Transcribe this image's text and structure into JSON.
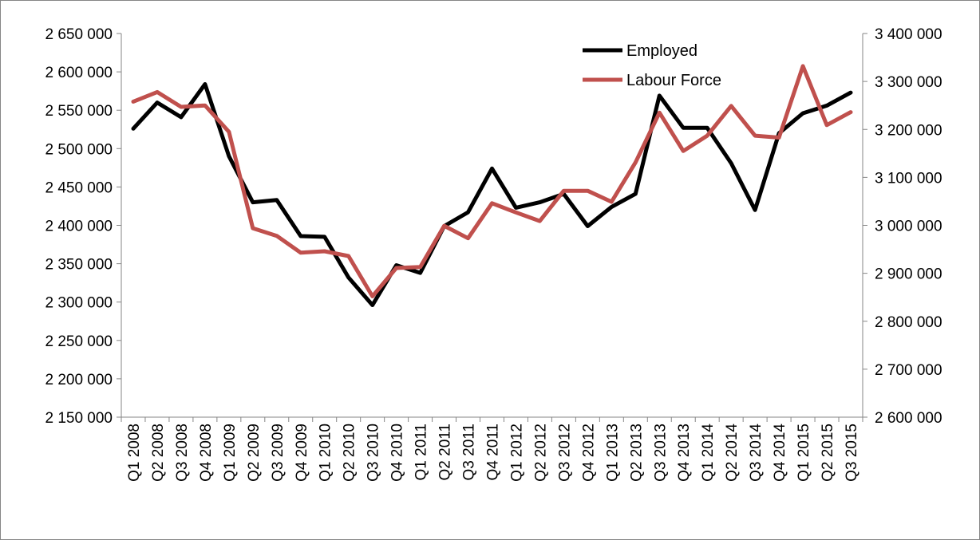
{
  "chart_data": {
    "type": "line",
    "categories": [
      "Q1 2008",
      "Q2 2008",
      "Q3 2008",
      "Q4 2008",
      "Q1 2009",
      "Q2 2009",
      "Q3 2009",
      "Q4 2009",
      "Q1 2010",
      "Q2 2010",
      "Q3 2010",
      "Q4 2010",
      "Q1 2011",
      "Q2 2011",
      "Q3 2011",
      "Q4 2011",
      "Q1 2012",
      "Q2 2012",
      "Q3 2012",
      "Q4 2012",
      "Q1 2013",
      "Q2 2013",
      "Q3 2013",
      "Q4 2013",
      "Q1 2014",
      "Q2 2014",
      "Q3 2014",
      "Q4 2014",
      "Q1 2015",
      "Q2 2015",
      "Q3 2015"
    ],
    "series": [
      {
        "name": "Employed",
        "axis": "left",
        "color": "#000000",
        "values": [
          2526000,
          2560000,
          2541000,
          2584000,
          2490000,
          2430000,
          2433000,
          2386000,
          2385000,
          2332000,
          2296000,
          2348000,
          2338000,
          2399000,
          2417000,
          2474000,
          2423000,
          2430000,
          2441000,
          2399000,
          2424000,
          2441000,
          2569000,
          2527000,
          2527000,
          2481000,
          2420000,
          2520000,
          2546000,
          2556000,
          2573000
        ]
      },
      {
        "name": "Labour Force",
        "axis": "right",
        "color": "#c0504d",
        "values": [
          3258000,
          3278000,
          3247000,
          3250000,
          3195000,
          2994000,
          2978000,
          2943000,
          2946000,
          2936000,
          2852000,
          2911000,
          2913000,
          2999000,
          2973000,
          3046000,
          3027000,
          3009000,
          3072000,
          3072000,
          3049000,
          3131000,
          3235000,
          3155000,
          3187000,
          3249000,
          3187000,
          3183000,
          3332000,
          3209000,
          3236000
        ]
      }
    ],
    "ylim": [
      2150000,
      2650000
    ],
    "y2lim": [
      2600000,
      3400000
    ],
    "yticks": [
      "2 150 000",
      "2 200 000",
      "2 250 000",
      "2 300 000",
      "2 350 000",
      "2 400 000",
      "2 450 000",
      "2 500 000",
      "2 550 000",
      "2 600 000",
      "2 650 000"
    ],
    "y2ticks": [
      "2 600 000",
      "2 700 000",
      "2 800 000",
      "2 900 000",
      "3 000 000",
      "3 100 000",
      "3 200 000",
      "3 300 000",
      "3 400 000"
    ],
    "legend": [
      "Employed",
      "Labour Force"
    ],
    "legend_position": "top-right",
    "grid": false,
    "title": "",
    "xlabel": "",
    "ylabel": ""
  }
}
